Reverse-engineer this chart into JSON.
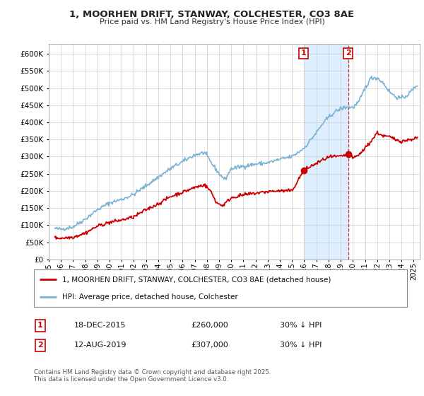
{
  "title_line1": "1, MOORHEN DRIFT, STANWAY, COLCHESTER, CO3 8AE",
  "title_line2": "Price paid vs. HM Land Registry's House Price Index (HPI)",
  "hpi_color": "#7ab3d4",
  "price_color": "#cc0000",
  "background_color": "#ffffff",
  "grid_color": "#cccccc",
  "highlight_color": "#ddeeff",
  "ylim": [
    0,
    630000
  ],
  "yticks": [
    0,
    50000,
    100000,
    150000,
    200000,
    250000,
    300000,
    350000,
    400000,
    450000,
    500000,
    550000,
    600000
  ],
  "sale1_date": "18-DEC-2015",
  "sale1_price": 260000,
  "sale1_label": "1",
  "sale1_year": 2015.96,
  "sale2_date": "12-AUG-2019",
  "sale2_price": 307000,
  "sale2_label": "2",
  "sale2_year": 2019.62,
  "legend_property": "1, MOORHEN DRIFT, STANWAY, COLCHESTER, CO3 8AE (detached house)",
  "legend_hpi": "HPI: Average price, detached house, Colchester",
  "footnote": "Contains HM Land Registry data © Crown copyright and database right 2025.\nThis data is licensed under the Open Government Licence v3.0.",
  "sale1_pct": "30% ↓ HPI",
  "sale2_pct": "30% ↓ HPI",
  "xmin": 1995,
  "xmax": 2025.5
}
